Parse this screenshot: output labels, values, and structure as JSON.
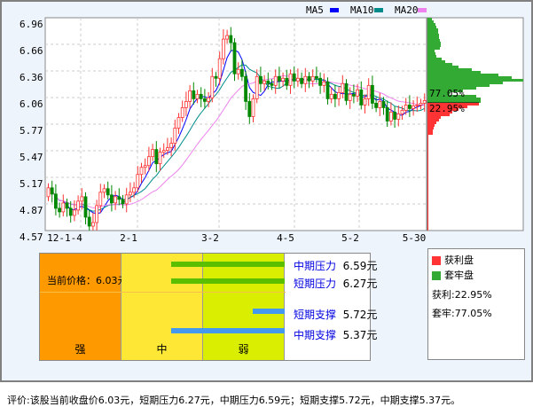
{
  "legend": {
    "ma5": "MA5",
    "ma10": "MA10",
    "ma20": "MA20",
    "colors": {
      "ma5": "#0000ff",
      "ma10": "#008b8b",
      "ma20": "#ee82ee",
      "up": "#ff3333",
      "down": "#008800"
    }
  },
  "chart_data": {
    "type": "candlestick",
    "yticks": [
      "6.96",
      "6.66",
      "6.36",
      "6.06",
      "5.77",
      "5.47",
      "5.17",
      "4.87",
      "4.57"
    ],
    "ylim": [
      4.57,
      6.96
    ],
    "xticks": [
      "12-1-4",
      "2-1",
      "3-2",
      "4-5",
      "5-2",
      "5-30"
    ],
    "open": [
      4.95,
      5.05,
      4.98,
      4.82,
      4.78,
      4.88,
      4.82,
      4.74,
      4.8,
      4.9,
      4.95,
      4.72,
      4.62,
      4.66,
      4.85,
      5.0,
      5.04,
      4.97,
      4.88,
      4.95,
      4.92,
      4.87,
      4.97,
      5.0,
      5.05,
      5.2,
      5.28,
      5.3,
      5.4,
      5.48,
      5.32,
      5.45,
      5.47,
      5.5,
      5.55,
      5.72,
      5.84,
      5.95,
      6.02,
      6.14,
      6.05,
      6.1,
      6.05,
      6.02,
      6.06,
      6.3,
      6.28,
      6.5,
      6.72,
      6.76,
      6.68,
      6.33,
      6.38,
      6.3,
      6.02,
      5.85,
      6.05,
      6.3,
      6.22,
      6.25,
      6.22,
      6.2,
      6.3,
      6.25,
      6.28,
      6.2,
      6.33,
      6.25,
      6.28,
      6.22,
      6.3,
      6.25,
      6.3,
      6.28,
      6.2,
      6.24,
      6.05,
      6.1,
      6.05,
      6.12,
      6.22,
      6.03,
      6.1,
      6.08,
      6.15,
      5.98,
      6.05,
      6.2,
      6.0,
      5.95,
      6.02,
      5.95,
      5.8,
      5.9,
      5.82,
      5.88,
      5.92,
      5.98,
      5.94,
      5.97,
      5.98,
      6.0
    ],
    "close": [
      5.05,
      4.98,
      4.82,
      4.78,
      4.88,
      4.82,
      4.74,
      4.8,
      4.9,
      4.95,
      4.72,
      4.62,
      4.66,
      4.85,
      5.0,
      5.04,
      4.97,
      4.88,
      4.95,
      4.92,
      4.87,
      4.97,
      5.0,
      5.05,
      5.2,
      5.28,
      5.3,
      5.4,
      5.48,
      5.32,
      5.45,
      5.47,
      5.5,
      5.55,
      5.72,
      5.84,
      5.95,
      6.02,
      6.14,
      6.05,
      6.1,
      6.05,
      6.02,
      6.06,
      6.3,
      6.28,
      6.5,
      6.72,
      6.76,
      6.68,
      6.33,
      6.38,
      6.3,
      6.02,
      5.85,
      6.05,
      6.3,
      6.22,
      6.25,
      6.22,
      6.2,
      6.3,
      6.25,
      6.28,
      6.2,
      6.33,
      6.25,
      6.28,
      6.22,
      6.3,
      6.25,
      6.3,
      6.28,
      6.2,
      6.24,
      6.05,
      6.1,
      6.05,
      6.12,
      6.22,
      6.03,
      6.1,
      6.08,
      6.15,
      5.98,
      6.05,
      6.2,
      6.0,
      5.95,
      6.02,
      5.95,
      5.8,
      5.9,
      5.82,
      5.88,
      5.92,
      5.98,
      5.94,
      5.97,
      5.98,
      6.0,
      6.03
    ],
    "chip_distribution": {
      "current_price": 6.03,
      "profit_label": "22.95%",
      "trapped_label": "77.05%",
      "trapped": [
        5,
        7,
        9,
        10,
        12,
        12,
        13,
        13,
        14,
        15,
        15,
        14,
        8,
        9,
        10,
        16,
        20,
        28,
        35,
        50,
        60,
        80,
        95,
        108,
        85,
        70,
        55,
        40,
        25,
        55,
        60,
        60
      ],
      "profit": [
        58,
        45,
        35,
        28,
        25,
        15,
        13,
        10,
        8,
        7,
        6,
        6,
        1,
        1,
        1,
        1,
        1,
        1,
        1,
        1,
        1,
        1,
        1,
        1,
        1,
        1,
        1,
        1,
        1,
        1,
        1,
        1,
        1,
        1,
        1,
        1,
        1,
        1,
        1,
        1,
        1,
        1,
        1,
        1,
        1,
        1,
        1,
        1
      ]
    }
  },
  "panel": {
    "current_price": "当前价格：6.03元",
    "columns": [
      "强",
      "中",
      "弱"
    ],
    "levels": [
      {
        "name": "中期压力",
        "value": "6.59元"
      },
      {
        "name": "短期压力",
        "value": "6.27元"
      },
      {
        "name": "短期支撑",
        "value": "5.72元"
      },
      {
        "name": "中期支撑",
        "value": "5.37元"
      }
    ]
  },
  "side_legend": {
    "profit": "获利盘",
    "trapped": "套牢盘",
    "profit_pct": "获利:22.95%",
    "trapped_pct": "套牢:77.05%"
  },
  "footer": "评价:该股当前收盘价6.03元，短期压力6.27元，中期压力6.59元；短期支撑5.72元，中期支撑5.37元。"
}
